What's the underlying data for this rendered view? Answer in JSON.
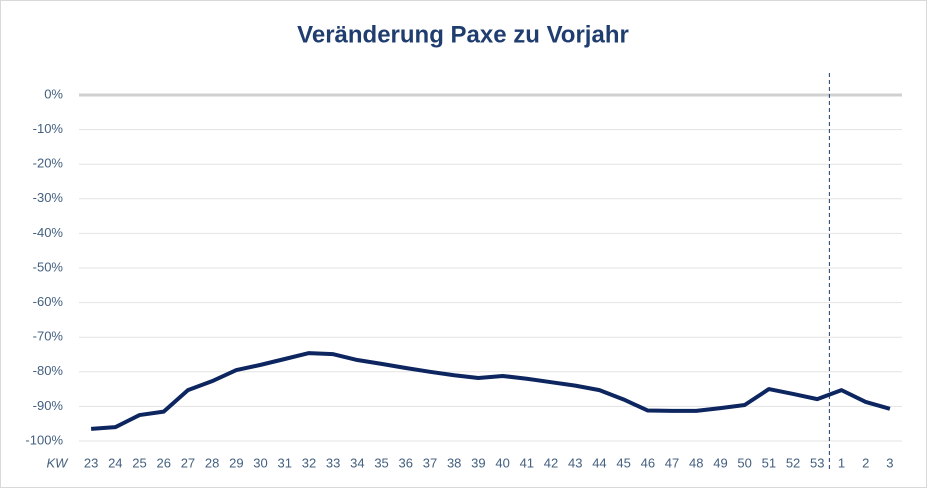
{
  "chart_data": {
    "type": "line",
    "title": "Veränderung Paxe zu Vorjahr",
    "x_label": "KW",
    "categories": [
      "23",
      "24",
      "25",
      "26",
      "27",
      "28",
      "29",
      "30",
      "31",
      "32",
      "33",
      "34",
      "35",
      "36",
      "37",
      "38",
      "39",
      "40",
      "41",
      "42",
      "43",
      "44",
      "45",
      "46",
      "47",
      "48",
      "49",
      "50",
      "51",
      "52",
      "53",
      "1",
      "2",
      "3"
    ],
    "series": [
      {
        "name": "Veränderung Paxe zu Vorjahr",
        "color": "#0d2660",
        "values": [
          -96.5,
          -96,
          -92.5,
          -91.5,
          -85.3,
          -82.7,
          -79.5,
          -78,
          -76.3,
          -74.6,
          -74.9,
          -76.6,
          -77.7,
          -78.9,
          -80,
          -81,
          -81.8,
          -81.2,
          -82,
          -83,
          -84,
          -85.3,
          -88,
          -91.2,
          -91.3,
          -91.3,
          -90.5,
          -89.6,
          -85,
          -86.4,
          -87.9,
          -85.3,
          -88.7,
          -90.7
        ]
      }
    ],
    "ylim": [
      -100,
      0
    ],
    "yticks": [
      {
        "value": 0,
        "label": "0%"
      },
      {
        "value": -10,
        "label": "-10%"
      },
      {
        "value": -20,
        "label": "-20%"
      },
      {
        "value": -30,
        "label": "-30%"
      },
      {
        "value": -40,
        "label": "-40%"
      },
      {
        "value": -50,
        "label": "-50%"
      },
      {
        "value": -60,
        "label": "-60%"
      },
      {
        "value": -70,
        "label": "-70%"
      },
      {
        "value": -80,
        "label": "-80%"
      },
      {
        "value": -90,
        "label": "-90%"
      },
      {
        "value": -100,
        "label": "-100%"
      }
    ],
    "grid": true
  }
}
